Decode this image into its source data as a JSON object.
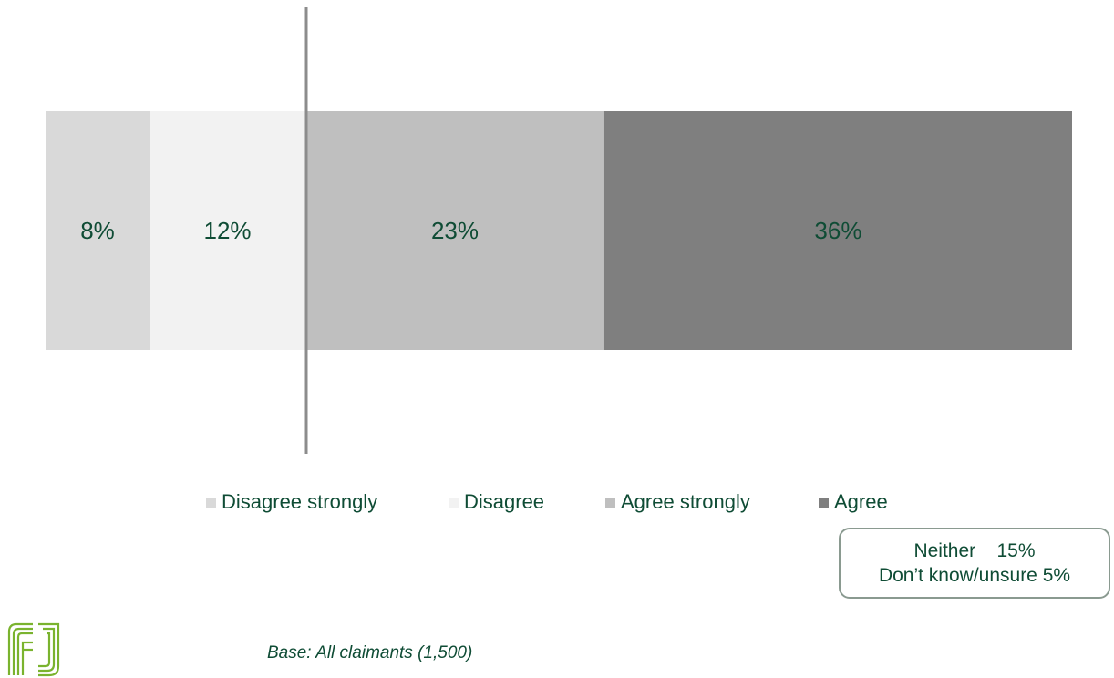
{
  "chart_data": {
    "type": "bar",
    "orientation": "horizontal-stacked",
    "categories": [
      ""
    ],
    "series": [
      {
        "name": "Disagree strongly",
        "values": [
          8
        ],
        "label": "8%",
        "color": "#d9d9d9"
      },
      {
        "name": "Disagree",
        "values": [
          12
        ],
        "label": "12%",
        "color": "#f2f2f2"
      },
      {
        "name": "Agree strongly",
        "values": [
          23
        ],
        "label": "23%",
        "color": "#bfbfbf"
      },
      {
        "name": "Agree",
        "values": [
          36
        ],
        "label": "36%",
        "color": "#7f7f7f"
      }
    ],
    "unit": "%",
    "legend_placement": "bottom",
    "grid": false,
    "label_color": "#0f4c35",
    "divider": "between disagree and agree"
  },
  "note_box": {
    "line1": "Neither    15%",
    "line2": "Don’t know/unsure 5%"
  },
  "base_note": "Base: All claimants (1,500)",
  "logo": {
    "icon": "company-logo-icon",
    "color": "#7ab32e"
  }
}
